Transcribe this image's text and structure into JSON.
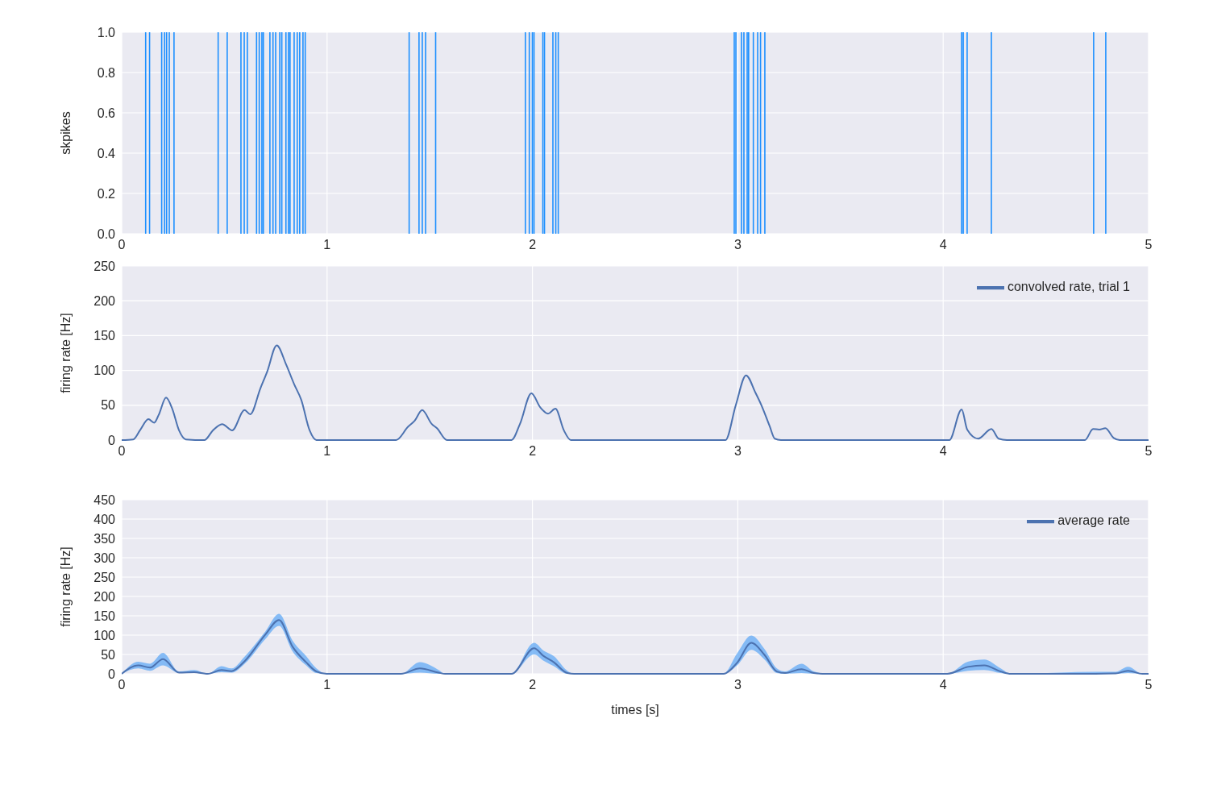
{
  "chart_data": [
    {
      "type": "bar",
      "ylabel": "skpikes",
      "grid": true,
      "color": "#1e90ff",
      "x": [
        0.117,
        0.136,
        0.195,
        0.209,
        0.219,
        0.232,
        0.255,
        0.47,
        0.514,
        0.581,
        0.597,
        0.612,
        0.657,
        0.67,
        0.683,
        0.69,
        0.722,
        0.737,
        0.75,
        0.77,
        0.78,
        0.8,
        0.812,
        0.82,
        0.84,
        0.855,
        0.867,
        0.883,
        0.894,
        1.4,
        1.448,
        1.464,
        1.48,
        1.529,
        1.966,
        1.985,
        2.0,
        2.008,
        2.051,
        2.059,
        2.1,
        2.114,
        2.126,
        2.983,
        2.991,
        3.018,
        3.03,
        3.046,
        3.053,
        3.076,
        3.097,
        3.111,
        3.132,
        4.09,
        4.098,
        4.117,
        4.235,
        4.733,
        4.792
      ],
      "values": [
        1,
        1,
        1,
        1,
        1,
        1,
        1,
        1,
        1,
        1,
        1,
        1,
        1,
        1,
        1,
        1,
        1,
        1,
        1,
        1,
        1,
        1,
        1,
        1,
        1,
        1,
        1,
        1,
        1,
        1,
        1,
        1,
        1,
        1,
        1,
        1,
        1,
        1,
        1,
        1,
        1,
        1,
        1,
        1,
        1,
        1,
        1,
        1,
        1,
        1,
        1,
        1,
        1,
        1,
        1,
        1,
        1,
        1,
        1
      ],
      "xlim": [
        0,
        5
      ],
      "xticks": [
        0,
        1,
        2,
        3,
        4,
        5
      ],
      "ylim": [
        0,
        1
      ],
      "yticks": [
        {
          "value": 0,
          "label": "0.0"
        },
        {
          "value": 0.2,
          "label": "0.2"
        },
        {
          "value": 0.4,
          "label": "0.4"
        },
        {
          "value": 0.6,
          "label": "0.6"
        },
        {
          "value": 0.8,
          "label": "0.8"
        },
        {
          "value": 1,
          "label": "1.0"
        }
      ]
    },
    {
      "type": "line",
      "ylabel": "firing rate [Hz]",
      "grid": true,
      "legend": "top right",
      "x": [
        0,
        0.056,
        0.089,
        0.13,
        0.158,
        0.18,
        0.216,
        0.246,
        0.279,
        0.312,
        0.403,
        0.444,
        0.489,
        0.538,
        0.598,
        0.626,
        0.675,
        0.708,
        0.755,
        0.8,
        0.84,
        0.874,
        0.915,
        0.948,
        1.336,
        1.394,
        1.427,
        1.463,
        1.51,
        1.535,
        1.584,
        1.898,
        1.939,
        1.995,
        2.038,
        2.076,
        2.112,
        2.153,
        2.187,
        2.94,
        2.99,
        3.04,
        3.086,
        3.115,
        3.155,
        3.18,
        3.21,
        4.03,
        4.09,
        4.117,
        4.17,
        4.235,
        4.27,
        4.31,
        4.69,
        4.73,
        4.76,
        4.79,
        4.83,
        4.86,
        5
      ],
      "series": [
        {
          "name": "convolved rate, trial 1",
          "color": "#4c72b0",
          "values": [
            0,
            1,
            14,
            30,
            25,
            36,
            61,
            45,
            14,
            1,
            0,
            14,
            23,
            14,
            43,
            37,
            74,
            98,
            136,
            109,
            80,
            58,
            14,
            0,
            0,
            19,
            28,
            43,
            23,
            17,
            0,
            0,
            23,
            67,
            47,
            38,
            45,
            14,
            0,
            0,
            50,
            93,
            68,
            50,
            20,
            2,
            0,
            0,
            44,
            15,
            2,
            16,
            2,
            0,
            0,
            16,
            15,
            17,
            3,
            0,
            0
          ]
        }
      ],
      "xlim": [
        0,
        5
      ],
      "xticks": [
        0,
        1,
        2,
        3,
        4,
        5
      ],
      "ylim": [
        0,
        250
      ],
      "yticks": [
        0,
        50,
        100,
        150,
        200,
        250
      ]
    },
    {
      "type": "line",
      "xlabel": "times [s]",
      "ylabel": "firing rate [Hz]",
      "grid": true,
      "legend": "top right",
      "x": [
        0,
        0.081,
        0.138,
        0.201,
        0.279,
        0.353,
        0.419,
        0.486,
        0.535,
        0.601,
        0.7,
        0.766,
        0.832,
        0.898,
        0.948,
        0.998,
        1.36,
        1.452,
        1.543,
        1.575,
        1.898,
        2.008,
        2.054,
        2.104,
        2.17,
        2.203,
        2.93,
        2.997,
        3.066,
        3.13,
        3.19,
        3.23,
        3.31,
        3.37,
        3.43,
        4.02,
        4.12,
        4.2,
        4.28,
        4.33,
        4.74,
        4.84,
        4.9,
        4.97,
        5
      ],
      "series": [
        {
          "name": "average rate",
          "color": "#4c72b0",
          "values": [
            0,
            22,
            16,
            38,
            3,
            4,
            0,
            10,
            7,
            34,
            102,
            139,
            70,
            30,
            6,
            0,
            0,
            14,
            3,
            0,
            0,
            66,
            46,
            30,
            2,
            0,
            0,
            29,
            80,
            49,
            6,
            2,
            12,
            2,
            0,
            0,
            18,
            22,
            6,
            0,
            0,
            1,
            8,
            0,
            0
          ],
          "lower": [
            0,
            14,
            8,
            22,
            2,
            2,
            0,
            4,
            3,
            27,
            90,
            124,
            58,
            22,
            2,
            0,
            0,
            3,
            0,
            0,
            0,
            50,
            34,
            20,
            0,
            0,
            0,
            22,
            62,
            37,
            2,
            0,
            2,
            0,
            0,
            0,
            8,
            10,
            2,
            0,
            0,
            0,
            2,
            0,
            0
          ],
          "upper": [
            0,
            31,
            26,
            54,
            6,
            10,
            0,
            20,
            14,
            46,
            110,
            155,
            86,
            46,
            14,
            0,
            0,
            30,
            10,
            0,
            0,
            80,
            60,
            46,
            8,
            0,
            0,
            53,
            99,
            64,
            14,
            6,
            26,
            6,
            0,
            0,
            31,
            37,
            14,
            0,
            5,
            5,
            18,
            0,
            0
          ]
        }
      ],
      "xlim": [
        0,
        5
      ],
      "xticks": [
        0,
        1,
        2,
        3,
        4,
        5
      ],
      "ylim": [
        0,
        450
      ],
      "yticks": [
        0,
        50,
        100,
        150,
        200,
        250,
        300,
        350,
        400,
        450
      ]
    }
  ]
}
